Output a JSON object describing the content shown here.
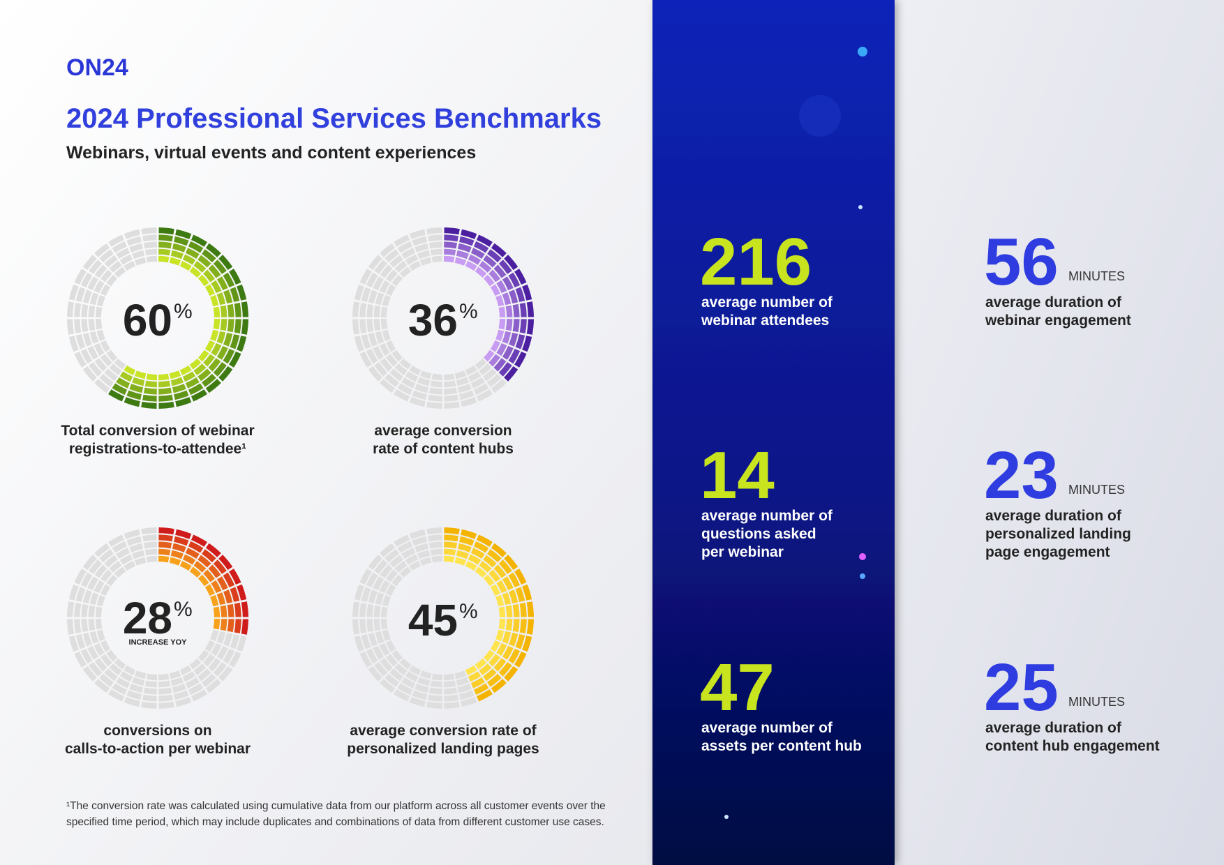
{
  "header": {
    "logo": "ON24",
    "title": "2024 Professional Services Benchmarks",
    "subtitle": "Webinars, virtual events and content experiences"
  },
  "gauges": [
    {
      "value": 60,
      "unit": "%",
      "caption": [
        "Total conversion of webinar",
        "registrations-to-attendee¹"
      ],
      "colors": [
        "#c9e426",
        "#3d7a12"
      ]
    },
    {
      "value": 36,
      "unit": "%",
      "caption": [
        "average conversion",
        "rate of content hubs"
      ],
      "colors": [
        "#c89cf2",
        "#4b1fa0"
      ]
    },
    {
      "value": 28,
      "unit": "%",
      "note": "INCREASE YOY",
      "caption": [
        "conversions on",
        "calls-to-action per webinar"
      ],
      "colors": [
        "#f7a21a",
        "#d01b1b"
      ]
    },
    {
      "value": 45,
      "unit": "%",
      "caption": [
        "average conversion rate of",
        "personalized landing pages"
      ],
      "colors": [
        "#ffe44d",
        "#f4b300"
      ]
    }
  ],
  "stats": [
    {
      "value": 216,
      "label": [
        "average number of",
        "webinar attendees"
      ]
    },
    {
      "value": 14,
      "label": [
        "average number of",
        "questions asked",
        "per webinar"
      ]
    },
    {
      "value": 47,
      "label": [
        "average number of",
        "assets per content hub"
      ]
    }
  ],
  "durations": [
    {
      "value": 56,
      "unit": "MINUTES",
      "label": [
        "average duration of",
        "webinar engagement"
      ]
    },
    {
      "value": 23,
      "unit": "MINUTES",
      "label": [
        "average duration of",
        "personalized landing",
        "page engagement"
      ]
    },
    {
      "value": 25,
      "unit": "MINUTES",
      "label": [
        "average duration of",
        "content hub engagement"
      ]
    }
  ],
  "footnote": [
    "¹The conversion rate was calculated using cumulative data from our platform across all customer events over the",
    "specified time period, which may include duplicates and combinations of data from different customer use cases."
  ]
}
